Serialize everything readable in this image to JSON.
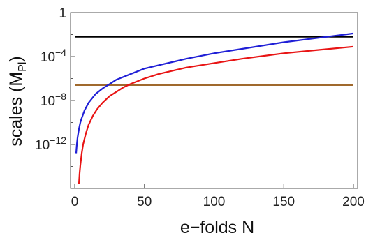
{
  "chart_data": {
    "type": "line",
    "title": "",
    "xlabel": "e−folds N",
    "ylabel": "scales (M",
    "ylabel_sub": "Pl",
    "ylabel_close": ")",
    "xlim": [
      -3,
      203
    ],
    "ylim_log10": [
      -16,
      0
    ],
    "y_scale": "log",
    "grid": false,
    "legend": "none",
    "x_ticks": [
      {
        "value": 0,
        "label": "0"
      },
      {
        "value": 50,
        "label": "50"
      },
      {
        "value": 100,
        "label": "100"
      },
      {
        "value": 150,
        "label": "150"
      },
      {
        "value": 200,
        "label": "200"
      }
    ],
    "y_ticks": [
      {
        "log10": 0,
        "base": "1",
        "exp": ""
      },
      {
        "log10": -4,
        "base": "10",
        "exp": "−4"
      },
      {
        "log10": -8,
        "base": "10",
        "exp": "−8"
      },
      {
        "log10": -12,
        "base": "10",
        "exp": "−12"
      }
    ],
    "y_minor_ticks_log10": [
      -2,
      -6,
      -10,
      -14
    ],
    "series": [
      {
        "color": "#000000",
        "x": [
          0,
          200
        ],
        "log10_y": [
          -2.2,
          -2.2
        ]
      },
      {
        "color": "#a0692d",
        "x": [
          0,
          200
        ],
        "log10_y": [
          -6.6,
          -6.6
        ]
      },
      {
        "color": "#1f1fd6",
        "x": [
          1,
          1.5,
          2,
          3,
          4,
          5,
          7,
          10,
          15,
          20,
          25,
          30,
          40,
          50,
          60,
          80,
          100,
          120,
          150,
          175,
          200
        ],
        "log10_y": [
          -12.8,
          -12.0,
          -11.4,
          -10.6,
          -10.0,
          -9.6,
          -8.9,
          -8.2,
          -7.4,
          -6.9,
          -6.5,
          -6.1,
          -5.6,
          -5.1,
          -4.8,
          -4.2,
          -3.7,
          -3.3,
          -2.7,
          -2.3,
          -1.9
        ]
      },
      {
        "color": "#e81414",
        "x": [
          3,
          3.5,
          4,
          5,
          6,
          8,
          10,
          13,
          16,
          20,
          25,
          30,
          35,
          40,
          50,
          60,
          80,
          100,
          120,
          150,
          175,
          200
        ],
        "log10_y": [
          -15.6,
          -14.6,
          -13.9,
          -12.8,
          -12.0,
          -11.0,
          -10.2,
          -9.4,
          -8.8,
          -8.2,
          -7.6,
          -7.2,
          -6.8,
          -6.5,
          -6.0,
          -5.6,
          -5.0,
          -4.6,
          -4.2,
          -3.7,
          -3.4,
          -3.1
        ]
      }
    ]
  }
}
